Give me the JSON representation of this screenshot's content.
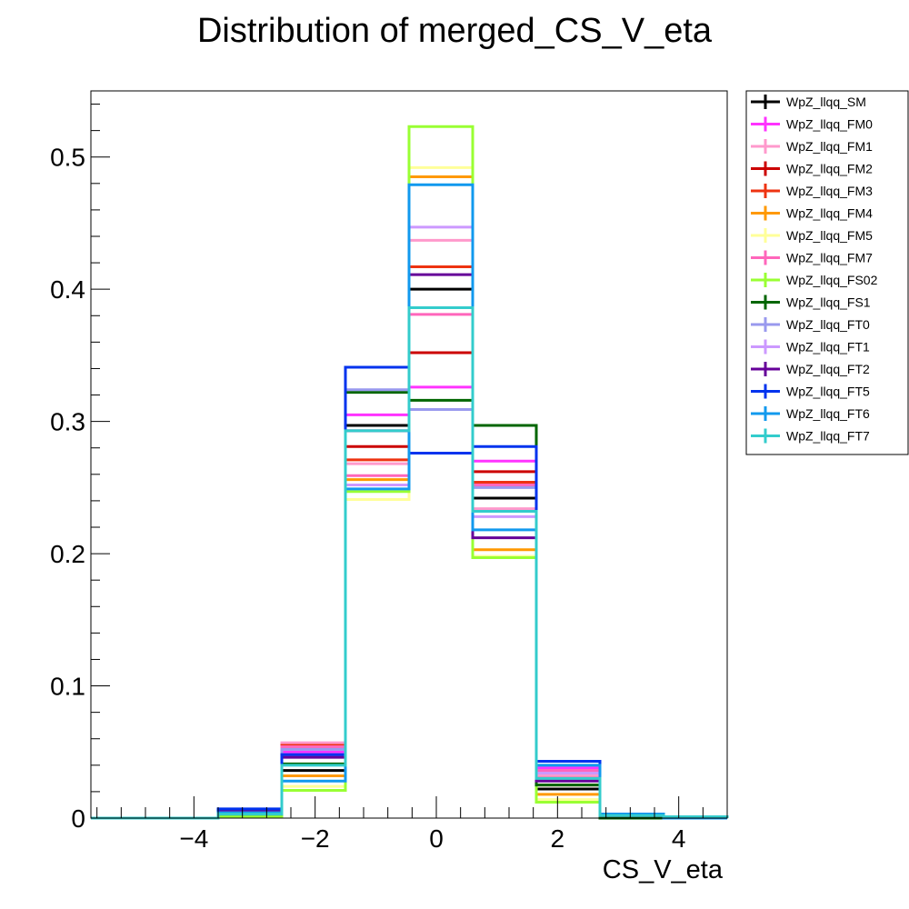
{
  "chart_data": {
    "type": "histogram",
    "title": "Distribution of merged_CS_V_eta",
    "xlabel": "CS_V_eta",
    "ylabel": "",
    "xlim": [
      -5.7,
      4.8
    ],
    "ylim": [
      0,
      0.55
    ],
    "grid": false,
    "legend_position": "outside-right-top",
    "x_ticks": [
      -4,
      -2,
      0,
      2,
      4
    ],
    "x_tick_labels": [
      "−4",
      "−2",
      "0",
      "2",
      "4"
    ],
    "y_ticks": [
      0,
      0.1,
      0.2,
      0.3,
      0.4,
      0.5
    ],
    "y_tick_labels": [
      "0",
      "0.1",
      "0.2",
      "0.3",
      "0.4",
      "0.5"
    ],
    "bin_edges": [
      -5.7,
      -4.65,
      -3.6,
      -2.55,
      -1.5,
      -0.45,
      0.6,
      1.65,
      2.7,
      3.75,
      4.8
    ],
    "series": [
      {
        "name": "WpZ_llqq_SM",
        "color": "#000000",
        "values": [
          0.0,
          0.0,
          0.002,
          0.036,
          0.297,
          0.4,
          0.242,
          0.022,
          0.001,
          0.0
        ]
      },
      {
        "name": "WpZ_llqq_FM0",
        "color": "#ff33ff",
        "values": [
          0.0,
          0.0,
          0.003,
          0.05,
          0.305,
          0.326,
          0.27,
          0.038,
          0.002,
          0.0
        ]
      },
      {
        "name": "WpZ_llqq_FM1",
        "color": "#ff99cc",
        "values": [
          0.0,
          0.0,
          0.004,
          0.057,
          0.268,
          0.437,
          0.234,
          0.032,
          0.002,
          0.0
        ]
      },
      {
        "name": "WpZ_llqq_FM2",
        "color": "#cc0000",
        "values": [
          0.0,
          0.0,
          0.004,
          0.053,
          0.281,
          0.352,
          0.262,
          0.03,
          0.002,
          0.0
        ]
      },
      {
        "name": "WpZ_llqq_FM3",
        "color": "#ee3311",
        "values": [
          0.0,
          0.0,
          0.002,
          0.055,
          0.271,
          0.417,
          0.254,
          0.025,
          0.001,
          0.0
        ]
      },
      {
        "name": "WpZ_llqq_FM4",
        "color": "#ff9900",
        "values": [
          0.0,
          0.0,
          0.002,
          0.032,
          0.256,
          0.485,
          0.203,
          0.018,
          0.001,
          0.0
        ]
      },
      {
        "name": "WpZ_llqq_FM5",
        "color": "#ffff99",
        "values": [
          0.0,
          0.0,
          0.001,
          0.024,
          0.241,
          0.492,
          0.198,
          0.014,
          0.001,
          0.0
        ]
      },
      {
        "name": "WpZ_llqq_FM7",
        "color": "#ff66bb",
        "values": [
          0.0,
          0.0,
          0.003,
          0.054,
          0.259,
          0.381,
          0.252,
          0.036,
          0.002,
          0.0
        ]
      },
      {
        "name": "WpZ_llqq_FS02",
        "color": "#99ff33",
        "values": [
          0.0,
          0.0,
          0.001,
          0.021,
          0.247,
          0.523,
          0.197,
          0.012,
          0.0,
          0.0
        ]
      },
      {
        "name": "WpZ_llqq_FS1",
        "color": "#006600",
        "values": [
          0.0,
          0.0,
          0.003,
          0.041,
          0.322,
          0.316,
          0.297,
          0.025,
          0.0,
          0.0
        ]
      },
      {
        "name": "WpZ_llqq_FT0",
        "color": "#9999ee",
        "values": [
          0.0,
          0.0,
          0.005,
          0.052,
          0.324,
          0.309,
          0.25,
          0.04,
          0.003,
          0.0
        ]
      },
      {
        "name": "WpZ_llqq_FT1",
        "color": "#cc99ff",
        "values": [
          0.0,
          0.0,
          0.005,
          0.047,
          0.252,
          0.447,
          0.228,
          0.034,
          0.002,
          0.0
        ]
      },
      {
        "name": "WpZ_llqq_FT2",
        "color": "#660099",
        "values": [
          0.0,
          0.0,
          0.006,
          0.046,
          0.293,
          0.411,
          0.212,
          0.028,
          0.002,
          0.0
        ]
      },
      {
        "name": "WpZ_llqq_FT5",
        "color": "#0033ee",
        "values": [
          0.0,
          0.0,
          0.007,
          0.048,
          0.341,
          0.276,
          0.281,
          0.043,
          0.003,
          0.0
        ]
      },
      {
        "name": "WpZ_llqq_FT6",
        "color": "#1199ee",
        "values": [
          0.0,
          0.0,
          0.004,
          0.028,
          0.249,
          0.479,
          0.218,
          0.04,
          0.003,
          0.0
        ]
      },
      {
        "name": "WpZ_llqq_FT7",
        "color": "#33cccc",
        "values": [
          0.0,
          0.0,
          0.003,
          0.04,
          0.293,
          0.386,
          0.232,
          0.03,
          0.002,
          0.001
        ]
      }
    ]
  }
}
